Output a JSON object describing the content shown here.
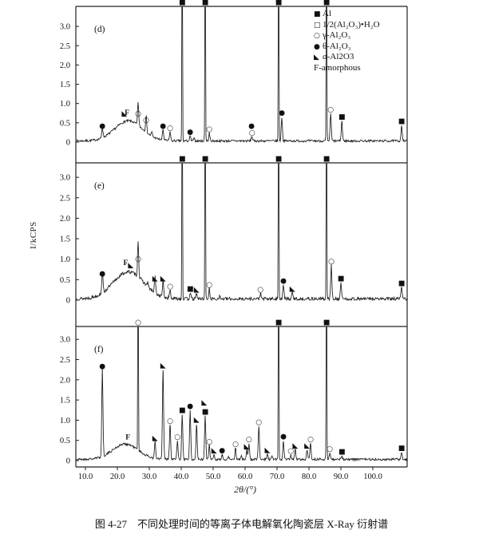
{
  "figure": {
    "caption": "图 4-27　不同处理时间的等离子体电解氧化陶瓷层 X-Ray 衍射谱"
  },
  "axes": {
    "x_label": "2θ/(°)",
    "y_label": "I/kCPS",
    "x_ticks": [
      10,
      20,
      30,
      40,
      50,
      60,
      70,
      80,
      90,
      100
    ],
    "x_tick_labels": [
      "10.0",
      "20.0",
      "30.0",
      "40.0",
      "50.0",
      "60.0",
      "70.0",
      "80.0",
      "90.0",
      "100.0"
    ],
    "y_ticks": [
      0,
      0.5,
      1.0,
      1.5,
      2.0,
      2.5,
      3.0
    ],
    "y_tick_labels": [
      "0",
      "0.5",
      "1.0",
      "1.5",
      "2.0",
      "2.5",
      "3.0"
    ],
    "xlim": [
      7,
      111
    ],
    "ylim_per_panel": [
      0,
      3.4
    ]
  },
  "legend": {
    "items": [
      {
        "symbol": "■",
        "label": "Al"
      },
      {
        "symbol": "□",
        "label": "1/2(Al₂O₃)•H₂O"
      },
      {
        "symbol": "○",
        "label": "γ-Al₂O₃"
      },
      {
        "symbol": "●",
        "label": "θ-Al₂O₃"
      },
      {
        "symbol": "◣",
        "label": "α-Al2O3"
      },
      {
        "symbol": "",
        "label": "F-amorphous"
      }
    ]
  },
  "chart_data": [
    {
      "type": "line",
      "panel": "(d)",
      "seed": 7,
      "noise": 0.03,
      "amorphous_hump": {
        "center": 23.5,
        "height": 0.52,
        "sigma": 4.3
      },
      "f_label": {
        "text": "F",
        "x": 23.0,
        "y": 0.7
      },
      "clipped_peaks": [
        {
          "x": 40.3,
          "m": "■"
        },
        {
          "x": 47.5,
          "m": "■"
        },
        {
          "x": 70.5,
          "m": "■"
        },
        {
          "x": 85.5,
          "m": "■"
        }
      ],
      "peaks": [
        {
          "x": 15.3,
          "h": 0.28,
          "m": "●"
        },
        {
          "x": 22.2,
          "h": 0.0,
          "m": "◣",
          "my": 0.6
        },
        {
          "x": 26.5,
          "h": 0.6,
          "m": "○"
        },
        {
          "x": 29.0,
          "h": 0.43,
          "m": "○"
        },
        {
          "x": 30.8,
          "h": 0.1,
          "m": ""
        },
        {
          "x": 34.3,
          "h": 0.28,
          "m": "●"
        },
        {
          "x": 36.5,
          "h": 0.23,
          "m": "○"
        },
        {
          "x": 42.8,
          "h": 0.12,
          "m": "●"
        },
        {
          "x": 44.0,
          "h": 0.06,
          "m": ""
        },
        {
          "x": 48.8,
          "h": 0.2,
          "m": "○"
        },
        {
          "x": 62.1,
          "h": 0.12,
          "m": ""
        },
        {
          "x": 71.5,
          "h": 0.62,
          "m": "●"
        },
        {
          "x": 86.8,
          "h": 0.7,
          "m": "○"
        },
        {
          "x": 90.3,
          "h": 0.52,
          "m": "■"
        },
        {
          "x": 109.0,
          "h": 0.4,
          "m": "■"
        }
      ],
      "extra_markers": [
        {
          "g": "●",
          "x": 62.0,
          "y": 0.36
        },
        {
          "g": "○",
          "x": 62.2,
          "y": 0.19
        }
      ]
    },
    {
      "type": "line",
      "panel": "(e)",
      "seed": 13,
      "noise": 0.042,
      "amorphous_hump": {
        "center": 23.5,
        "height": 0.66,
        "sigma": 4.8
      },
      "f_label": {
        "text": "F",
        "x": 22.6,
        "y": 0.86
      },
      "clipped_peaks": [
        {
          "x": 40.3,
          "m": "■"
        },
        {
          "x": 47.5,
          "m": "■"
        },
        {
          "x": 70.5,
          "m": "■"
        },
        {
          "x": 85.5,
          "m": "■"
        }
      ],
      "peaks": [
        {
          "x": 15.3,
          "h": 0.52,
          "m": "●"
        },
        {
          "x": 24.2,
          "h": 0.0,
          "m": "◣",
          "my": 0.72
        },
        {
          "x": 26.5,
          "h": 0.88,
          "m": "○"
        },
        {
          "x": 29.5,
          "h": 0.1,
          "m": ""
        },
        {
          "x": 31.8,
          "h": 0.4,
          "m": "◣"
        },
        {
          "x": 34.3,
          "h": 0.4,
          "m": "◣"
        },
        {
          "x": 36.5,
          "h": 0.2,
          "m": "○"
        },
        {
          "x": 42.8,
          "h": 0.15,
          "m": "■"
        },
        {
          "x": 44.8,
          "h": 0.13,
          "m": "◣"
        },
        {
          "x": 48.8,
          "h": 0.24,
          "m": "○"
        },
        {
          "x": 52.0,
          "h": 0.07,
          "m": ""
        },
        {
          "x": 64.8,
          "h": 0.13,
          "m": "○"
        },
        {
          "x": 72.0,
          "h": 0.34,
          "m": "●"
        },
        {
          "x": 74.8,
          "h": 0.15,
          "m": "◣"
        },
        {
          "x": 87.0,
          "h": 0.82,
          "m": "○"
        },
        {
          "x": 90.0,
          "h": 0.4,
          "m": "■"
        },
        {
          "x": 109.0,
          "h": 0.28,
          "m": "■"
        }
      ],
      "extra_markers": []
    },
    {
      "type": "line",
      "panel": "(f)",
      "seed": 21,
      "noise": 0.03,
      "amorphous_hump": {
        "center": 22.5,
        "height": 0.38,
        "sigma": 4.0
      },
      "f_label": {
        "text": "F",
        "x": 23.3,
        "y": 0.52
      },
      "clipped_peaks": [
        {
          "x": 26.5,
          "m": "○"
        },
        {
          "x": 70.5,
          "m": "■"
        },
        {
          "x": 85.5,
          "m": "■"
        }
      ],
      "peaks": [
        {
          "x": 15.3,
          "h": 2.2,
          "m": "●"
        },
        {
          "x": 31.8,
          "h": 0.42,
          "m": "◣"
        },
        {
          "x": 34.3,
          "h": 2.22,
          "m": "◣"
        },
        {
          "x": 36.5,
          "h": 0.85,
          "m": "○"
        },
        {
          "x": 38.8,
          "h": 0.45,
          "m": "○"
        },
        {
          "x": 40.3,
          "h": 1.12,
          "m": "■"
        },
        {
          "x": 42.8,
          "h": 1.22,
          "m": "●"
        },
        {
          "x": 44.8,
          "h": 0.88,
          "m": "◣"
        },
        {
          "x": 47.5,
          "h": 1.08,
          "m": "■"
        },
        {
          "x": 48.8,
          "h": 0.34,
          "m": "○"
        },
        {
          "x": 50.3,
          "h": 0.12,
          "m": "◣"
        },
        {
          "x": 52.8,
          "h": 0.12,
          "m": "●"
        },
        {
          "x": 54.8,
          "h": 0.08,
          "m": ""
        },
        {
          "x": 57.0,
          "h": 0.28,
          "m": "○"
        },
        {
          "x": 58.8,
          "h": 0.1,
          "m": ""
        },
        {
          "x": 60.5,
          "h": 0.22,
          "m": "◣"
        },
        {
          "x": 61.2,
          "h": 0.4,
          "m": "○"
        },
        {
          "x": 64.3,
          "h": 0.82,
          "m": "○"
        },
        {
          "x": 67.0,
          "h": 0.13,
          "m": "◣"
        },
        {
          "x": 68.4,
          "h": 0.08,
          "m": ""
        },
        {
          "x": 72.0,
          "h": 0.46,
          "m": "●"
        },
        {
          "x": 74.3,
          "h": 0.11,
          "m": "○"
        },
        {
          "x": 75.7,
          "h": 0.24,
          "m": "◣"
        },
        {
          "x": 79.4,
          "h": 0.24,
          "m": "◣"
        },
        {
          "x": 80.5,
          "h": 0.4,
          "m": "○"
        },
        {
          "x": 86.5,
          "h": 0.16,
          "m": "○"
        },
        {
          "x": 90.3,
          "h": 0.09,
          "m": "■"
        },
        {
          "x": 109.0,
          "h": 0.18,
          "m": "■"
        }
      ],
      "extra_markers": [
        {
          "g": "◣",
          "x": 47.2,
          "y": 1.38
        }
      ]
    }
  ]
}
